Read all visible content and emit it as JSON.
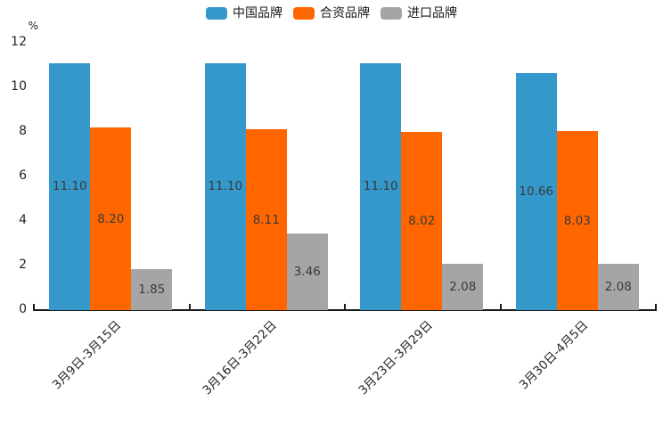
{
  "chart_data": {
    "type": "bar",
    "title": "",
    "xlabel": "",
    "ylabel": "%",
    "categories": [
      "3月9日-3月15日",
      "3月16日-3月22日",
      "3月23日-3月29日",
      "3月30日-4月5日"
    ],
    "series": [
      {
        "name": "中国品牌",
        "color": "#3498cb",
        "values": [
          11.1,
          11.1,
          11.1,
          10.66
        ]
      },
      {
        "name": "合资品牌",
        "color": "#ff6600",
        "values": [
          8.2,
          8.11,
          8.02,
          8.03
        ]
      },
      {
        "name": "进口品牌",
        "color": "#a5a5a5",
        "values": [
          1.85,
          3.46,
          2.08,
          2.08
        ]
      }
    ],
    "ylim": [
      0,
      12
    ],
    "yticks": [
      0,
      2,
      4,
      6,
      8,
      10,
      12
    ],
    "value_label_decimals": 2,
    "legend_position": "top-center",
    "grid": false,
    "axis_color": "#1a1a1a"
  }
}
